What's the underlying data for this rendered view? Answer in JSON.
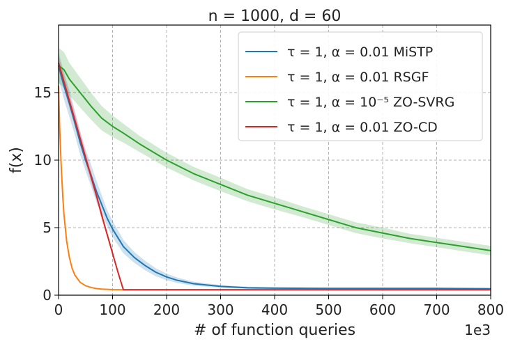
{
  "chart_data": {
    "type": "line",
    "title": "n = 1000,  d = 60",
    "xlabel": "# of function queries",
    "ylabel": "f(x)",
    "x_scale_note": "1e3",
    "xlim": [
      0,
      800
    ],
    "ylim": [
      0,
      20
    ],
    "xticks": [
      0,
      100,
      200,
      300,
      400,
      500,
      600,
      700,
      800
    ],
    "yticks": [
      0,
      5,
      10,
      15
    ],
    "grid": true,
    "legend_position": "top-right",
    "series": [
      {
        "name": "τ = 1, α = 0.01 MiSTP",
        "color": "#1f77b4",
        "x": [
          0,
          10,
          20,
          30,
          40,
          50,
          60,
          70,
          80,
          90,
          100,
          120,
          140,
          160,
          180,
          200,
          220,
          250,
          300,
          350,
          400,
          500,
          600,
          700,
          800
        ],
        "y": [
          17.0,
          15.5,
          14.2,
          12.8,
          11.3,
          10.0,
          8.9,
          7.7,
          6.7,
          5.7,
          4.9,
          3.6,
          2.8,
          2.2,
          1.7,
          1.35,
          1.1,
          0.85,
          0.65,
          0.55,
          0.52,
          0.5,
          0.5,
          0.5,
          0.48
        ],
        "band": [
          1.0,
          1.0,
          1.0,
          0.9,
          0.9,
          0.8,
          0.8,
          0.8,
          0.7,
          0.6,
          0.6,
          0.5,
          0.4,
          0.35,
          0.3,
          0.25,
          0.2,
          0.15,
          0.1,
          0.08,
          0.07,
          0.06,
          0.06,
          0.06,
          0.06
        ]
      },
      {
        "name": "τ = 1, α = 0.01 RSGF",
        "color": "#ff7f0e",
        "x": [
          0,
          2,
          5,
          8,
          10,
          15,
          20,
          25,
          30,
          40,
          50,
          60,
          70,
          80,
          100,
          120,
          150,
          200,
          300,
          400,
          500,
          600,
          700,
          800
        ],
        "y": [
          15.5,
          12.5,
          9.5,
          7.2,
          6.0,
          4.0,
          2.8,
          2.0,
          1.5,
          0.95,
          0.7,
          0.57,
          0.49,
          0.45,
          0.41,
          0.4,
          0.4,
          0.4,
          0.4,
          0.4,
          0.4,
          0.4,
          0.4,
          0.4
        ],
        "band": [
          0.1,
          0.1,
          0.1,
          0.1,
          0.1,
          0.1,
          0.05,
          0.05,
          0.05,
          0.05,
          0.03,
          0.03,
          0.02,
          0.02,
          0.02,
          0.02,
          0.02,
          0.02,
          0.02,
          0.02,
          0.02,
          0.02,
          0.02,
          0.02
        ]
      },
      {
        "name": "τ = 1, α = 10⁻⁵ ZO-SVRG",
        "color": "#2ca02c",
        "x": [
          0,
          10,
          20,
          40,
          60,
          80,
          100,
          120,
          150,
          200,
          250,
          300,
          350,
          400,
          450,
          500,
          550,
          600,
          650,
          700,
          750,
          800
        ],
        "y": [
          17.0,
          16.7,
          16.0,
          15.0,
          14.0,
          13.1,
          12.5,
          12.0,
          11.2,
          10.0,
          9.0,
          8.2,
          7.4,
          6.8,
          6.2,
          5.6,
          5.0,
          4.6,
          4.2,
          3.9,
          3.6,
          3.3
        ],
        "band": [
          1.3,
          1.3,
          1.2,
          1.1,
          1.0,
          0.9,
          0.8,
          0.7,
          0.6,
          0.55,
          0.5,
          0.5,
          0.45,
          0.45,
          0.4,
          0.4,
          0.4,
          0.4,
          0.35,
          0.35,
          0.35,
          0.35
        ]
      },
      {
        "name": "τ = 1, α = 0.01 ZO-CD",
        "color": "#d62728",
        "x": [
          0,
          10,
          20,
          30,
          40,
          50,
          60,
          70,
          80,
          90,
          100,
          110,
          120,
          200,
          300,
          400,
          500,
          600,
          700,
          800
        ],
        "y": [
          17.2,
          15.8,
          14.4,
          13.0,
          11.6,
          10.2,
          8.8,
          7.4,
          5.9,
          4.5,
          3.1,
          1.7,
          0.4,
          0.4,
          0.4,
          0.4,
          0.4,
          0.4,
          0.4,
          0.4
        ],
        "band": [
          0.5,
          0.5,
          0.5,
          0.5,
          0.4,
          0.4,
          0.4,
          0.3,
          0.3,
          0.2,
          0.2,
          0.1,
          0.02,
          0.02,
          0.02,
          0.02,
          0.02,
          0.02,
          0.02,
          0.02
        ]
      }
    ]
  }
}
